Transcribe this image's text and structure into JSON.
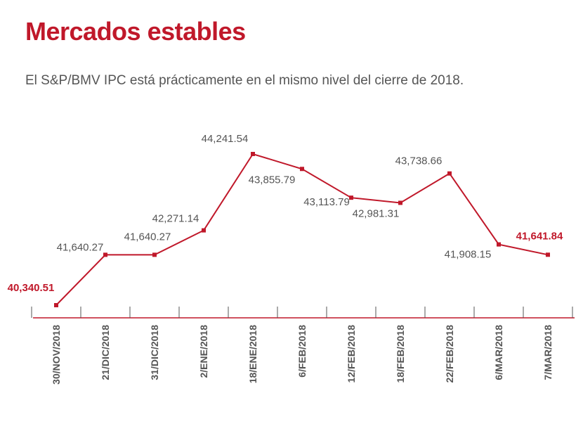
{
  "header": {
    "title": "Mercados estables",
    "subtitle": "El S&P/BMV IPC está prácticamente en el mismo nivel del cierre de 2018."
  },
  "chart_data": {
    "type": "line",
    "title": "Mercados estables",
    "subtitle": "El S&P/BMV IPC está prácticamente en el mismo nivel del cierre de 2018.",
    "xlabel": "",
    "ylabel": "",
    "categories": [
      "30/NOV/2018",
      "21/DIC/2018",
      "31/DIC/2018",
      "2/ENE/2018",
      "18/ENE/2018",
      "6/FEB/2018",
      "12/FEB/2018",
      "18/FEB/2018",
      "22/FEB/2018",
      "6/MAR/2018",
      "7/MAR/2018"
    ],
    "series": [
      {
        "values": [
          40340.51,
          41640.27,
          41640.27,
          42271.14,
          44241.54,
          43855.79,
          43113.79,
          42981.31,
          43738.66,
          41908.15,
          41641.84
        ],
        "labels": [
          "40,340.51",
          "41,640.27",
          "41,640.27",
          "42,271.14",
          "44,241.54",
          "43,855.79",
          "43,113.79",
          "42,981.31",
          "43,738.66",
          "41,908.15",
          "41,641.84"
        ]
      }
    ],
    "highlighted_labels": [
      0,
      10
    ],
    "ylim": [
      40000,
      44500
    ],
    "grid": false,
    "legend": "none",
    "colors": {
      "line": "#c0182a",
      "highlight": "#c0182a",
      "text": "#555555",
      "axis": "#c0182a",
      "tick": "#555555"
    }
  }
}
